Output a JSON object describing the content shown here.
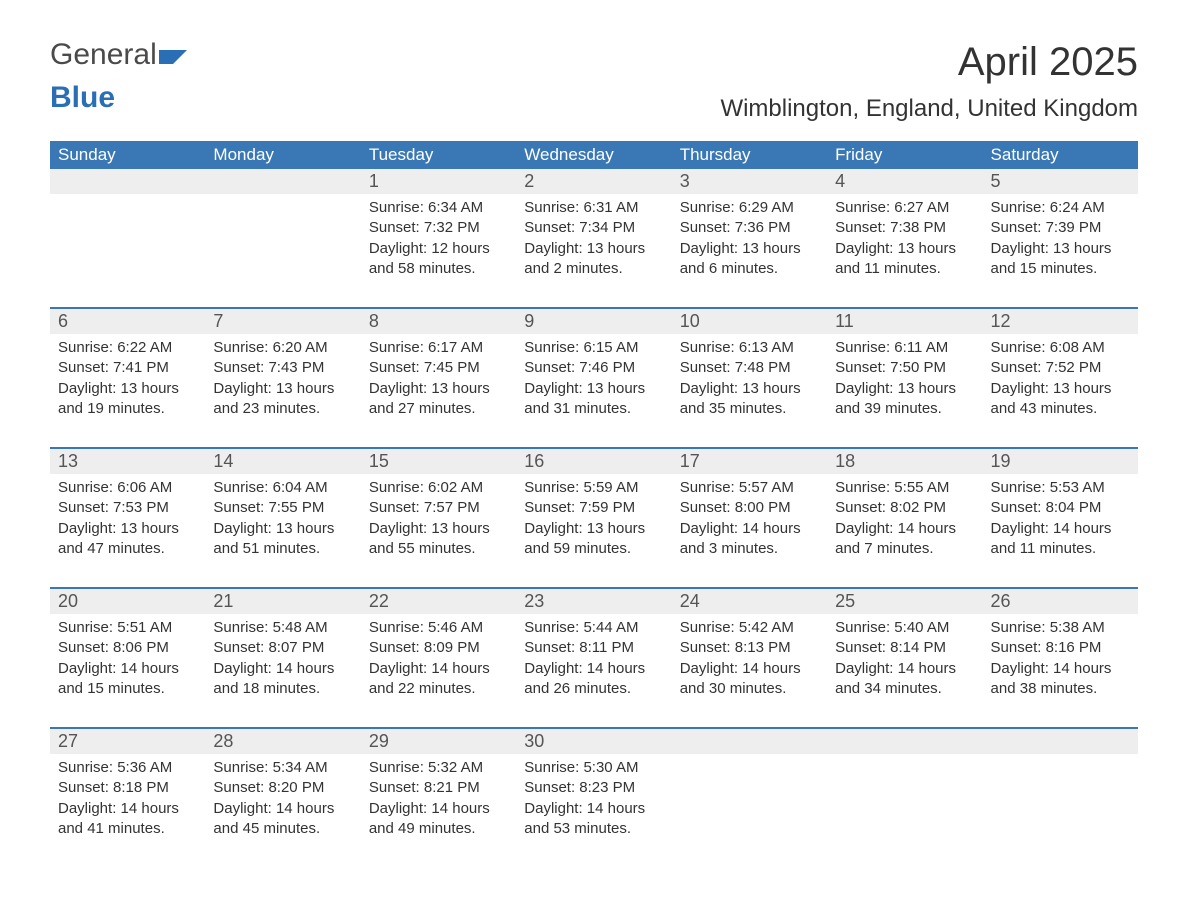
{
  "brand": {
    "word1": "General",
    "word2": "Blue"
  },
  "title": "April 2025",
  "location": "Wimblington, England, United Kingdom",
  "colors": {
    "header_bg": "#3a78b5",
    "header_text": "#ffffff",
    "daynum_bg": "#eeeeee",
    "rule": "#3a78b5",
    "body_text": "#333333",
    "logo_gray": "#4a4a4a",
    "logo_blue": "#2a6fb5"
  },
  "day_headers": [
    "Sunday",
    "Monday",
    "Tuesday",
    "Wednesday",
    "Thursday",
    "Friday",
    "Saturday"
  ],
  "weeks": [
    {
      "nums": [
        "",
        "",
        "1",
        "2",
        "3",
        "4",
        "5"
      ],
      "cells": [
        null,
        null,
        {
          "sunrise": "Sunrise: 6:34 AM",
          "sunset": "Sunset: 7:32 PM",
          "day1": "Daylight: 12 hours",
          "day2": "and 58 minutes."
        },
        {
          "sunrise": "Sunrise: 6:31 AM",
          "sunset": "Sunset: 7:34 PM",
          "day1": "Daylight: 13 hours",
          "day2": "and 2 minutes."
        },
        {
          "sunrise": "Sunrise: 6:29 AM",
          "sunset": "Sunset: 7:36 PM",
          "day1": "Daylight: 13 hours",
          "day2": "and 6 minutes."
        },
        {
          "sunrise": "Sunrise: 6:27 AM",
          "sunset": "Sunset: 7:38 PM",
          "day1": "Daylight: 13 hours",
          "day2": "and 11 minutes."
        },
        {
          "sunrise": "Sunrise: 6:24 AM",
          "sunset": "Sunset: 7:39 PM",
          "day1": "Daylight: 13 hours",
          "day2": "and 15 minutes."
        }
      ]
    },
    {
      "nums": [
        "6",
        "7",
        "8",
        "9",
        "10",
        "11",
        "12"
      ],
      "cells": [
        {
          "sunrise": "Sunrise: 6:22 AM",
          "sunset": "Sunset: 7:41 PM",
          "day1": "Daylight: 13 hours",
          "day2": "and 19 minutes."
        },
        {
          "sunrise": "Sunrise: 6:20 AM",
          "sunset": "Sunset: 7:43 PM",
          "day1": "Daylight: 13 hours",
          "day2": "and 23 minutes."
        },
        {
          "sunrise": "Sunrise: 6:17 AM",
          "sunset": "Sunset: 7:45 PM",
          "day1": "Daylight: 13 hours",
          "day2": "and 27 minutes."
        },
        {
          "sunrise": "Sunrise: 6:15 AM",
          "sunset": "Sunset: 7:46 PM",
          "day1": "Daylight: 13 hours",
          "day2": "and 31 minutes."
        },
        {
          "sunrise": "Sunrise: 6:13 AM",
          "sunset": "Sunset: 7:48 PM",
          "day1": "Daylight: 13 hours",
          "day2": "and 35 minutes."
        },
        {
          "sunrise": "Sunrise: 6:11 AM",
          "sunset": "Sunset: 7:50 PM",
          "day1": "Daylight: 13 hours",
          "day2": "and 39 minutes."
        },
        {
          "sunrise": "Sunrise: 6:08 AM",
          "sunset": "Sunset: 7:52 PM",
          "day1": "Daylight: 13 hours",
          "day2": "and 43 minutes."
        }
      ]
    },
    {
      "nums": [
        "13",
        "14",
        "15",
        "16",
        "17",
        "18",
        "19"
      ],
      "cells": [
        {
          "sunrise": "Sunrise: 6:06 AM",
          "sunset": "Sunset: 7:53 PM",
          "day1": "Daylight: 13 hours",
          "day2": "and 47 minutes."
        },
        {
          "sunrise": "Sunrise: 6:04 AM",
          "sunset": "Sunset: 7:55 PM",
          "day1": "Daylight: 13 hours",
          "day2": "and 51 minutes."
        },
        {
          "sunrise": "Sunrise: 6:02 AM",
          "sunset": "Sunset: 7:57 PM",
          "day1": "Daylight: 13 hours",
          "day2": "and 55 minutes."
        },
        {
          "sunrise": "Sunrise: 5:59 AM",
          "sunset": "Sunset: 7:59 PM",
          "day1": "Daylight: 13 hours",
          "day2": "and 59 minutes."
        },
        {
          "sunrise": "Sunrise: 5:57 AM",
          "sunset": "Sunset: 8:00 PM",
          "day1": "Daylight: 14 hours",
          "day2": "and 3 minutes."
        },
        {
          "sunrise": "Sunrise: 5:55 AM",
          "sunset": "Sunset: 8:02 PM",
          "day1": "Daylight: 14 hours",
          "day2": "and 7 minutes."
        },
        {
          "sunrise": "Sunrise: 5:53 AM",
          "sunset": "Sunset: 8:04 PM",
          "day1": "Daylight: 14 hours",
          "day2": "and 11 minutes."
        }
      ]
    },
    {
      "nums": [
        "20",
        "21",
        "22",
        "23",
        "24",
        "25",
        "26"
      ],
      "cells": [
        {
          "sunrise": "Sunrise: 5:51 AM",
          "sunset": "Sunset: 8:06 PM",
          "day1": "Daylight: 14 hours",
          "day2": "and 15 minutes."
        },
        {
          "sunrise": "Sunrise: 5:48 AM",
          "sunset": "Sunset: 8:07 PM",
          "day1": "Daylight: 14 hours",
          "day2": "and 18 minutes."
        },
        {
          "sunrise": "Sunrise: 5:46 AM",
          "sunset": "Sunset: 8:09 PM",
          "day1": "Daylight: 14 hours",
          "day2": "and 22 minutes."
        },
        {
          "sunrise": "Sunrise: 5:44 AM",
          "sunset": "Sunset: 8:11 PM",
          "day1": "Daylight: 14 hours",
          "day2": "and 26 minutes."
        },
        {
          "sunrise": "Sunrise: 5:42 AM",
          "sunset": "Sunset: 8:13 PM",
          "day1": "Daylight: 14 hours",
          "day2": "and 30 minutes."
        },
        {
          "sunrise": "Sunrise: 5:40 AM",
          "sunset": "Sunset: 8:14 PM",
          "day1": "Daylight: 14 hours",
          "day2": "and 34 minutes."
        },
        {
          "sunrise": "Sunrise: 5:38 AM",
          "sunset": "Sunset: 8:16 PM",
          "day1": "Daylight: 14 hours",
          "day2": "and 38 minutes."
        }
      ]
    },
    {
      "nums": [
        "27",
        "28",
        "29",
        "30",
        "",
        "",
        ""
      ],
      "cells": [
        {
          "sunrise": "Sunrise: 5:36 AM",
          "sunset": "Sunset: 8:18 PM",
          "day1": "Daylight: 14 hours",
          "day2": "and 41 minutes."
        },
        {
          "sunrise": "Sunrise: 5:34 AM",
          "sunset": "Sunset: 8:20 PM",
          "day1": "Daylight: 14 hours",
          "day2": "and 45 minutes."
        },
        {
          "sunrise": "Sunrise: 5:32 AM",
          "sunset": "Sunset: 8:21 PM",
          "day1": "Daylight: 14 hours",
          "day2": "and 49 minutes."
        },
        {
          "sunrise": "Sunrise: 5:30 AM",
          "sunset": "Sunset: 8:23 PM",
          "day1": "Daylight: 14 hours",
          "day2": "and 53 minutes."
        },
        null,
        null,
        null
      ]
    }
  ]
}
